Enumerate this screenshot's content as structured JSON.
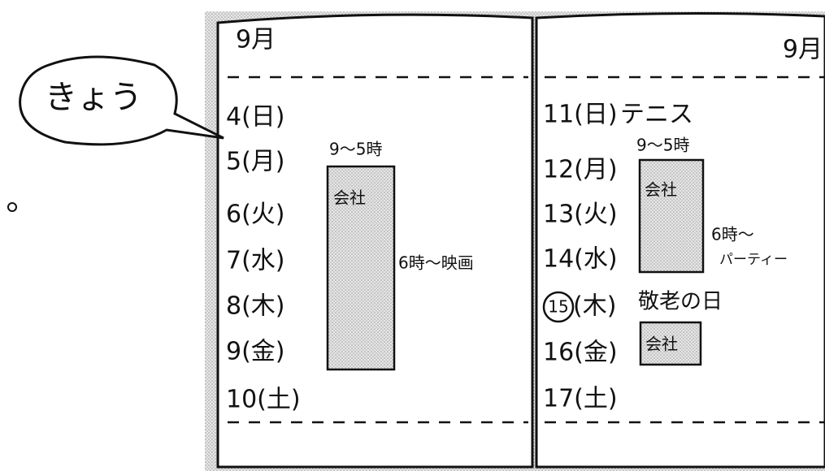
{
  "bubble": "きょう",
  "left_page": {
    "month": "9月",
    "days": [
      "4(日)",
      "5(月)",
      "6(火)",
      "7(水)",
      "8(木)",
      "9(金)",
      "10(土)"
    ],
    "work_hours": "9～5時",
    "work_label": "会社",
    "evening": "6時～映画"
  },
  "right_page": {
    "month": "9月",
    "days": [
      "11(日)",
      "12(月)",
      "13(火)",
      "14(水)",
      "15",
      "(木)",
      "16(金)",
      "17(土)"
    ],
    "tennis": "テニス",
    "work_hours": "9～5時",
    "work_label": "会社",
    "evening": "6時～",
    "party": "パーティー",
    "holiday": "敬老の日",
    "friday_work": "会社"
  }
}
